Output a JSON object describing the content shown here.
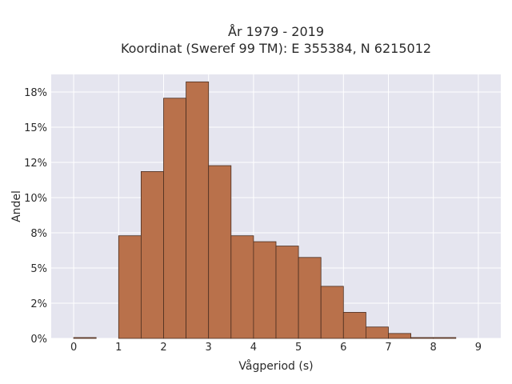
{
  "chart_data": {
    "type": "bar",
    "title_line1": "År 1979 - 2019",
    "title_line2": "Koordinat (Sweref 99 TM): E 355384, N 6215012",
    "xlabel": "Vågperiod (s)",
    "ylabel": "Andel",
    "xlim": [
      -0.5,
      9.5
    ],
    "ylim": [
      0,
      0.1875
    ],
    "x_ticks": [
      0,
      1,
      2,
      3,
      4,
      5,
      6,
      7,
      8,
      9
    ],
    "x_tick_labels": [
      "0",
      "1",
      "2",
      "3",
      "4",
      "5",
      "6",
      "7",
      "8",
      "9"
    ],
    "y_ticks": [
      0,
      0.025,
      0.05,
      0.075,
      0.1,
      0.125,
      0.15,
      0.175
    ],
    "y_tick_labels": [
      "0%",
      "2%",
      "5%",
      "8%",
      "10%",
      "12%",
      "15%",
      "18%"
    ],
    "bin_width": 0.5,
    "bins": [
      {
        "x0": 0.0,
        "value": 0.0006
      },
      {
        "x0": 1.0,
        "value": 0.0729
      },
      {
        "x0": 1.5,
        "value": 0.1185
      },
      {
        "x0": 2.0,
        "value": 0.1706
      },
      {
        "x0": 2.5,
        "value": 0.1822
      },
      {
        "x0": 3.0,
        "value": 0.1227
      },
      {
        "x0": 3.5,
        "value": 0.0729
      },
      {
        "x0": 4.0,
        "value": 0.0687
      },
      {
        "x0": 4.5,
        "value": 0.0656
      },
      {
        "x0": 5.0,
        "value": 0.0575
      },
      {
        "x0": 5.5,
        "value": 0.037
      },
      {
        "x0": 6.0,
        "value": 0.0185
      },
      {
        "x0": 6.5,
        "value": 0.0081
      },
      {
        "x0": 7.0,
        "value": 0.0035
      },
      {
        "x0": 7.5,
        "value": 0.0006
      },
      {
        "x0": 8.0,
        "value": 0.0006
      }
    ],
    "grid": true,
    "colors": {
      "plot_bg": "#e5e5ef",
      "grid": "#ffffff",
      "bar_fill": "#b9714b",
      "bar_stroke": "#4a2e20"
    }
  }
}
